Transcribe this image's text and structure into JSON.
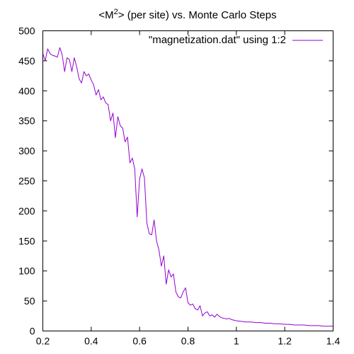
{
  "chart_data": {
    "type": "line",
    "title": {
      "before": "<M",
      "superscript": "2",
      "after": "> (per site) vs. Monte Carlo Steps"
    },
    "xlabel": "",
    "ylabel": "",
    "xlim": [
      0.2,
      1.4
    ],
    "ylim": [
      0,
      500
    ],
    "x_ticks": [
      0.2,
      0.4,
      0.6,
      0.8,
      1,
      1.2,
      1.4
    ],
    "y_ticks": [
      0,
      50,
      100,
      150,
      200,
      250,
      300,
      350,
      400,
      450,
      500
    ],
    "x_tick_labels": [
      "0.2",
      "0.4",
      "0.6",
      "0.8",
      "1",
      "1.2",
      "1.4"
    ],
    "y_tick_labels": [
      "0",
      "50",
      "100",
      "150",
      "200",
      "250",
      "300",
      "350",
      "400",
      "450",
      "500"
    ],
    "grid": false,
    "legend_position": "top-right",
    "series": [
      {
        "name": "\"magnetization.dat\" using 1:2",
        "color": "#9400d3",
        "x": [
          0.2,
          0.21,
          0.22,
          0.23,
          0.24,
          0.25,
          0.26,
          0.27,
          0.28,
          0.29,
          0.3,
          0.31,
          0.32,
          0.33,
          0.34,
          0.35,
          0.36,
          0.37,
          0.38,
          0.39,
          0.4,
          0.41,
          0.42,
          0.43,
          0.44,
          0.45,
          0.46,
          0.47,
          0.48,
          0.49,
          0.5,
          0.51,
          0.52,
          0.53,
          0.54,
          0.55,
          0.56,
          0.57,
          0.58,
          0.59,
          0.6,
          0.61,
          0.62,
          0.63,
          0.64,
          0.65,
          0.66,
          0.67,
          0.68,
          0.69,
          0.7,
          0.71,
          0.72,
          0.73,
          0.74,
          0.75,
          0.76,
          0.77,
          0.78,
          0.79,
          0.8,
          0.81,
          0.82,
          0.83,
          0.84,
          0.85,
          0.86,
          0.87,
          0.88,
          0.89,
          0.9,
          0.91,
          0.92,
          0.93,
          0.94,
          0.95,
          0.96,
          0.97,
          0.98,
          0.99,
          1.0,
          1.02,
          1.04,
          1.06,
          1.08,
          1.1,
          1.12,
          1.14,
          1.16,
          1.18,
          1.2,
          1.22,
          1.24,
          1.26,
          1.28,
          1.3,
          1.32,
          1.34,
          1.36,
          1.38,
          1.4
        ],
        "y": [
          462,
          450,
          470,
          462,
          459,
          458,
          456,
          472,
          460,
          432,
          455,
          452,
          432,
          455,
          440,
          420,
          413,
          432,
          425,
          428,
          418,
          410,
          393,
          402,
          385,
          390,
          380,
          377,
          350,
          363,
          322,
          357,
          342,
          338,
          315,
          323,
          280,
          288,
          270,
          190,
          253,
          270,
          255,
          180,
          162,
          160,
          185,
          150,
          135,
          108,
          125,
          78,
          102,
          90,
          95,
          65,
          57,
          55,
          65,
          72,
          47,
          43,
          45,
          37,
          35,
          42,
          25,
          30,
          32,
          25,
          27,
          23,
          28,
          24,
          22,
          21,
          20,
          21,
          19,
          18,
          17,
          16,
          15,
          15,
          14,
          14,
          13,
          13,
          12,
          12,
          11,
          11,
          10,
          10,
          10,
          9,
          9,
          9,
          8,
          8,
          8
        ]
      }
    ]
  }
}
